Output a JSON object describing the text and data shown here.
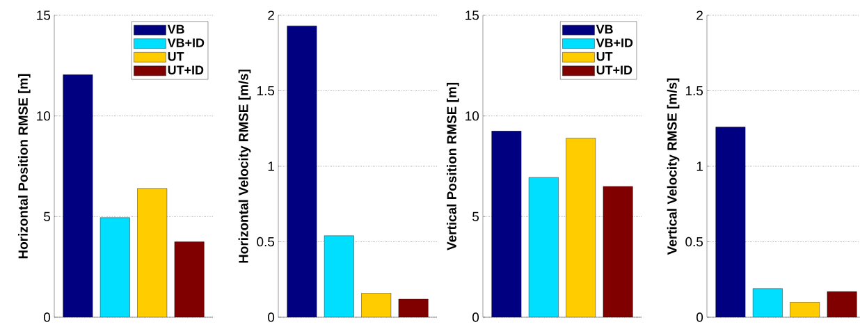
{
  "chart_data": [
    {
      "type": "bar",
      "ylabel": "Horizontal Position RMSE [m]",
      "categories": [
        null
      ],
      "ylim": [
        0,
        15
      ],
      "yticks": [
        0,
        5,
        10,
        15
      ],
      "grid": "y",
      "legend": "top right",
      "series": [
        {
          "name": "VB",
          "color": "#000080",
          "values": [
            12.05
          ]
        },
        {
          "name": "VB+ID",
          "color": "#00dfff",
          "values": [
            4.95
          ]
        },
        {
          "name": "UT",
          "color": "#ffcc00",
          "values": [
            6.4
          ]
        },
        {
          "name": "UT+ID",
          "color": "#800000",
          "values": [
            3.75
          ]
        }
      ]
    },
    {
      "type": "bar",
      "ylabel": "Horizontal Velocity RMSE [m/s]",
      "categories": [
        null
      ],
      "ylim": [
        0,
        2
      ],
      "yticks": [
        0,
        0.5,
        1,
        1.5,
        2
      ],
      "grid": "y",
      "series": [
        {
          "color": "#000080",
          "values": [
            1.93
          ]
        },
        {
          "color": "#00dfff",
          "values": [
            0.54
          ]
        },
        {
          "color": "#ffcc00",
          "values": [
            0.16
          ]
        },
        {
          "color": "#800000",
          "values": [
            0.12
          ]
        }
      ]
    },
    {
      "type": "bar",
      "ylabel": "Vertical Position RMSE [m]",
      "categories": [
        null
      ],
      "ylim": [
        0,
        15
      ],
      "yticks": [
        0,
        5,
        10,
        15
      ],
      "grid": "y",
      "legend": "top right",
      "series": [
        {
          "name": "VB",
          "color": "#000080",
          "values": [
            9.25
          ]
        },
        {
          "name": "VB+ID",
          "color": "#00dfff",
          "values": [
            6.95
          ]
        },
        {
          "name": "UT",
          "color": "#ffcc00",
          "values": [
            8.9
          ]
        },
        {
          "name": "UT+ID",
          "color": "#800000",
          "values": [
            6.5
          ]
        }
      ]
    },
    {
      "type": "bar",
      "ylabel": "Vertical Velocity RMSE [m/s]",
      "categories": [
        null
      ],
      "ylim": [
        0,
        2
      ],
      "yticks": [
        0,
        0.5,
        1,
        1.5,
        2
      ],
      "grid": "y",
      "series": [
        {
          "color": "#000080",
          "values": [
            1.26
          ]
        },
        {
          "color": "#00dfff",
          "values": [
            0.19
          ]
        },
        {
          "color": "#ffcc00",
          "values": [
            0.1
          ]
        },
        {
          "color": "#800000",
          "values": [
            0.17
          ]
        }
      ]
    }
  ]
}
